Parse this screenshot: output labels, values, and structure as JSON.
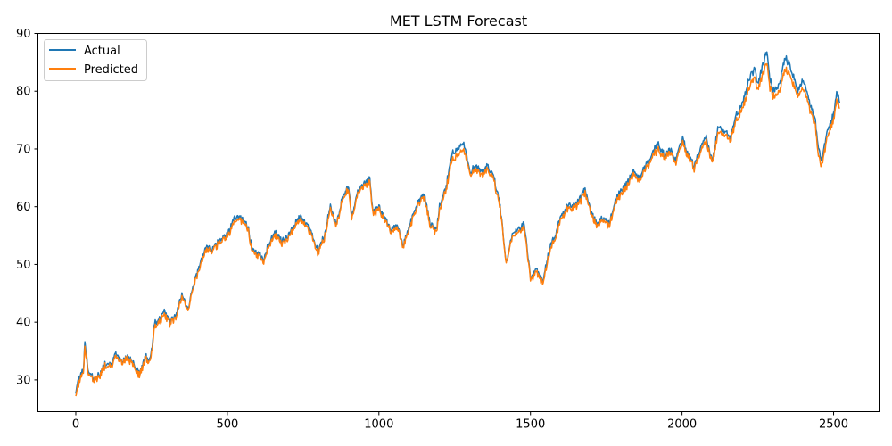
{
  "chart_data": {
    "type": "line",
    "title": "MET LSTM Forecast",
    "xlabel": "",
    "ylabel": "",
    "xlim": [
      -125,
      2650
    ],
    "ylim": [
      24.5,
      90
    ],
    "xticks": [
      0,
      500,
      1000,
      1500,
      2000,
      2500
    ],
    "yticks": [
      30,
      40,
      50,
      60,
      70,
      80,
      90
    ],
    "grid": false,
    "legend_position": "upper left",
    "series": [
      {
        "name": "Actual",
        "color": "#1f77b4",
        "points": [
          [
            0,
            28
          ],
          [
            15,
            31
          ],
          [
            25,
            32
          ],
          [
            30,
            36.5
          ],
          [
            40,
            32
          ],
          [
            60,
            30
          ],
          [
            80,
            31
          ],
          [
            100,
            33
          ],
          [
            120,
            32.5
          ],
          [
            130,
            34.5
          ],
          [
            150,
            33
          ],
          [
            170,
            34
          ],
          [
            180,
            33.5
          ],
          [
            200,
            32
          ],
          [
            210,
            31
          ],
          [
            230,
            34
          ],
          [
            240,
            33.5
          ],
          [
            250,
            35
          ],
          [
            260,
            40
          ],
          [
            280,
            40.5
          ],
          [
            290,
            42
          ],
          [
            310,
            40
          ],
          [
            330,
            41
          ],
          [
            350,
            45
          ],
          [
            370,
            42
          ],
          [
            390,
            47
          ],
          [
            410,
            50
          ],
          [
            430,
            53
          ],
          [
            450,
            52.5
          ],
          [
            470,
            54
          ],
          [
            490,
            55
          ],
          [
            510,
            56
          ],
          [
            520,
            58
          ],
          [
            540,
            58
          ],
          [
            560,
            57.5
          ],
          [
            570,
            56
          ],
          [
            580,
            53
          ],
          [
            600,
            52
          ],
          [
            620,
            51
          ],
          [
            640,
            54
          ],
          [
            660,
            55.5
          ],
          [
            680,
            54
          ],
          [
            700,
            55
          ],
          [
            720,
            57
          ],
          [
            740,
            58.5
          ],
          [
            760,
            57
          ],
          [
            780,
            55
          ],
          [
            800,
            52
          ],
          [
            820,
            55
          ],
          [
            840,
            60
          ],
          [
            860,
            57
          ],
          [
            880,
            62
          ],
          [
            900,
            63.5
          ],
          [
            910,
            58
          ],
          [
            930,
            63
          ],
          [
            950,
            64
          ],
          [
            970,
            65
          ],
          [
            980,
            59
          ],
          [
            1000,
            60
          ],
          [
            1020,
            58
          ],
          [
            1040,
            56
          ],
          [
            1060,
            57
          ],
          [
            1080,
            53
          ],
          [
            1090,
            55
          ],
          [
            1110,
            58
          ],
          [
            1130,
            61
          ],
          [
            1150,
            62
          ],
          [
            1170,
            57
          ],
          [
            1190,
            56
          ],
          [
            1200,
            60
          ],
          [
            1220,
            63
          ],
          [
            1240,
            69
          ],
          [
            1260,
            70
          ],
          [
            1280,
            71
          ],
          [
            1300,
            66
          ],
          [
            1320,
            67
          ],
          [
            1340,
            66
          ],
          [
            1360,
            67
          ],
          [
            1380,
            65
          ],
          [
            1400,
            60
          ],
          [
            1420,
            50
          ],
          [
            1440,
            55
          ],
          [
            1460,
            56
          ],
          [
            1480,
            57
          ],
          [
            1500,
            48
          ],
          [
            1520,
            49
          ],
          [
            1540,
            47
          ],
          [
            1560,
            52
          ],
          [
            1580,
            55
          ],
          [
            1600,
            58
          ],
          [
            1620,
            60
          ],
          [
            1640,
            60
          ],
          [
            1660,
            61
          ],
          [
            1680,
            63
          ],
          [
            1700,
            59
          ],
          [
            1720,
            57
          ],
          [
            1740,
            58
          ],
          [
            1760,
            57
          ],
          [
            1780,
            61
          ],
          [
            1800,
            63
          ],
          [
            1820,
            64
          ],
          [
            1840,
            66
          ],
          [
            1860,
            65
          ],
          [
            1880,
            67
          ],
          [
            1900,
            69
          ],
          [
            1920,
            71
          ],
          [
            1940,
            69
          ],
          [
            1960,
            70
          ],
          [
            1980,
            68
          ],
          [
            2000,
            72
          ],
          [
            2020,
            69
          ],
          [
            2040,
            67
          ],
          [
            2060,
            70
          ],
          [
            2080,
            72
          ],
          [
            2100,
            68
          ],
          [
            2120,
            74
          ],
          [
            2140,
            73
          ],
          [
            2160,
            72
          ],
          [
            2180,
            76
          ],
          [
            2200,
            78
          ],
          [
            2220,
            82
          ],
          [
            2240,
            84
          ],
          [
            2250,
            81
          ],
          [
            2260,
            83
          ],
          [
            2280,
            87
          ],
          [
            2290,
            82
          ],
          [
            2300,
            80
          ],
          [
            2320,
            81
          ],
          [
            2340,
            86
          ],
          [
            2360,
            84
          ],
          [
            2380,
            80
          ],
          [
            2400,
            82
          ],
          [
            2420,
            78
          ],
          [
            2440,
            75
          ],
          [
            2450,
            70
          ],
          [
            2460,
            68
          ],
          [
            2480,
            73
          ],
          [
            2500,
            76
          ],
          [
            2510,
            80
          ],
          [
            2520,
            78
          ]
        ]
      },
      {
        "name": "Predicted",
        "color": "#ff7f0e",
        "points": [
          [
            0,
            27.5
          ],
          [
            15,
            30.5
          ],
          [
            25,
            31.5
          ],
          [
            30,
            35.5
          ],
          [
            40,
            31.5
          ],
          [
            60,
            29.8
          ],
          [
            80,
            30.8
          ],
          [
            100,
            32.6
          ],
          [
            120,
            32.2
          ],
          [
            130,
            34
          ],
          [
            150,
            32.8
          ],
          [
            170,
            33.6
          ],
          [
            180,
            33.2
          ],
          [
            200,
            31.6
          ],
          [
            210,
            30.8
          ],
          [
            230,
            33.6
          ],
          [
            240,
            33.2
          ],
          [
            250,
            34.6
          ],
          [
            260,
            39.5
          ],
          [
            280,
            40
          ],
          [
            290,
            41.5
          ],
          [
            310,
            39.6
          ],
          [
            330,
            40.6
          ],
          [
            350,
            44.5
          ],
          [
            370,
            41.8
          ],
          [
            390,
            46.5
          ],
          [
            410,
            49.5
          ],
          [
            430,
            52.5
          ],
          [
            450,
            52.2
          ],
          [
            470,
            53.6
          ],
          [
            490,
            54.6
          ],
          [
            510,
            55.6
          ],
          [
            520,
            57.4
          ],
          [
            540,
            57.6
          ],
          [
            560,
            57.2
          ],
          [
            570,
            55.6
          ],
          [
            580,
            52.6
          ],
          [
            600,
            51.6
          ],
          [
            620,
            50.6
          ],
          [
            640,
            53.6
          ],
          [
            660,
            55
          ],
          [
            680,
            53.6
          ],
          [
            700,
            54.6
          ],
          [
            720,
            56.5
          ],
          [
            740,
            58
          ],
          [
            760,
            56.6
          ],
          [
            780,
            54.6
          ],
          [
            800,
            51.6
          ],
          [
            820,
            54.6
          ],
          [
            840,
            59.5
          ],
          [
            860,
            56.6
          ],
          [
            880,
            61.5
          ],
          [
            900,
            63
          ],
          [
            910,
            57.6
          ],
          [
            930,
            62.5
          ],
          [
            950,
            63.5
          ],
          [
            970,
            64.4
          ],
          [
            980,
            58.6
          ],
          [
            1000,
            59.6
          ],
          [
            1020,
            57.6
          ],
          [
            1040,
            55.6
          ],
          [
            1060,
            56.6
          ],
          [
            1080,
            52.6
          ],
          [
            1090,
            54.6
          ],
          [
            1110,
            57.5
          ],
          [
            1130,
            60.5
          ],
          [
            1150,
            61.5
          ],
          [
            1170,
            56.6
          ],
          [
            1190,
            55.6
          ],
          [
            1200,
            59.5
          ],
          [
            1220,
            62.5
          ],
          [
            1240,
            68
          ],
          [
            1260,
            69
          ],
          [
            1280,
            70
          ],
          [
            1300,
            65.5
          ],
          [
            1320,
            66.4
          ],
          [
            1340,
            65.5
          ],
          [
            1360,
            66.4
          ],
          [
            1380,
            64.5
          ],
          [
            1400,
            59.5
          ],
          [
            1420,
            50
          ],
          [
            1440,
            54.5
          ],
          [
            1460,
            55.5
          ],
          [
            1480,
            56.4
          ],
          [
            1500,
            47.5
          ],
          [
            1520,
            48.6
          ],
          [
            1540,
            46.6
          ],
          [
            1560,
            51.5
          ],
          [
            1580,
            54.5
          ],
          [
            1600,
            57.5
          ],
          [
            1620,
            59.5
          ],
          [
            1640,
            59.6
          ],
          [
            1660,
            60.5
          ],
          [
            1680,
            62.4
          ],
          [
            1700,
            58.6
          ],
          [
            1720,
            56.6
          ],
          [
            1740,
            57.6
          ],
          [
            1760,
            56.6
          ],
          [
            1780,
            60.5
          ],
          [
            1800,
            62.5
          ],
          [
            1820,
            63.5
          ],
          [
            1840,
            65.4
          ],
          [
            1860,
            64.6
          ],
          [
            1880,
            66.4
          ],
          [
            1900,
            68.4
          ],
          [
            1920,
            70
          ],
          [
            1940,
            68.5
          ],
          [
            1960,
            69.4
          ],
          [
            1980,
            67.6
          ],
          [
            2000,
            71.2
          ],
          [
            2020,
            68.6
          ],
          [
            2040,
            66.6
          ],
          [
            2060,
            69.4
          ],
          [
            2080,
            71.2
          ],
          [
            2100,
            67.6
          ],
          [
            2120,
            73
          ],
          [
            2140,
            72.4
          ],
          [
            2160,
            71.5
          ],
          [
            2180,
            75
          ],
          [
            2200,
            77
          ],
          [
            2220,
            80.5
          ],
          [
            2240,
            82.5
          ],
          [
            2250,
            80
          ],
          [
            2260,
            81.6
          ],
          [
            2280,
            85
          ],
          [
            2290,
            80.6
          ],
          [
            2300,
            79
          ],
          [
            2320,
            79.8
          ],
          [
            2340,
            84
          ],
          [
            2360,
            82.5
          ],
          [
            2380,
            79
          ],
          [
            2400,
            80.6
          ],
          [
            2420,
            77
          ],
          [
            2440,
            74
          ],
          [
            2450,
            68.5
          ],
          [
            2460,
            67
          ],
          [
            2480,
            72
          ],
          [
            2500,
            75
          ],
          [
            2510,
            78.5
          ],
          [
            2520,
            77
          ]
        ]
      }
    ]
  }
}
